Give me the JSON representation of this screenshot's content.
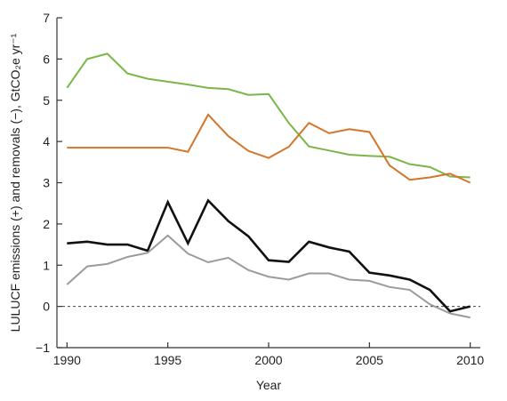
{
  "chart_data": {
    "type": "line",
    "title": "",
    "xlabel": "Year",
    "ylabel": "LULUCF emissions (+) and removals (−), GtCO₂e yr⁻¹",
    "xlim": [
      1989.5,
      2010.5
    ],
    "ylim": [
      -1,
      7
    ],
    "xticks": [
      1990,
      1995,
      2000,
      2005,
      2010
    ],
    "yticks": [
      -1,
      0,
      1,
      2,
      3,
      4,
      5,
      6,
      7
    ],
    "x": [
      1990,
      1991,
      1992,
      1993,
      1994,
      1995,
      1996,
      1997,
      1998,
      1999,
      2000,
      2001,
      2002,
      2003,
      2004,
      2005,
      2006,
      2007,
      2008,
      2009,
      2010
    ],
    "grid": false,
    "legend": "none",
    "series": [
      {
        "color": "#7ab648",
        "values": [
          5.3,
          6.0,
          6.13,
          5.65,
          5.52,
          5.45,
          5.38,
          5.3,
          5.27,
          5.13,
          5.15,
          4.45,
          3.88,
          3.78,
          3.68,
          3.65,
          3.63,
          3.45,
          3.38,
          3.15,
          3.13
        ]
      },
      {
        "color": "#d4752a",
        "values": [
          3.85,
          3.85,
          3.85,
          3.85,
          3.85,
          3.85,
          3.75,
          4.65,
          4.13,
          3.77,
          3.6,
          3.87,
          4.45,
          4.2,
          4.3,
          4.23,
          3.42,
          3.07,
          3.13,
          3.22,
          3.0
        ]
      },
      {
        "color": "#111111",
        "values": [
          1.53,
          1.57,
          1.5,
          1.5,
          1.35,
          2.53,
          1.53,
          2.57,
          2.07,
          1.7,
          1.12,
          1.08,
          1.57,
          1.43,
          1.33,
          0.82,
          0.75,
          0.65,
          0.4,
          -0.12,
          0.0
        ]
      },
      {
        "color": "#9b9b9b",
        "values": [
          0.53,
          0.97,
          1.03,
          1.2,
          1.3,
          1.72,
          1.28,
          1.07,
          1.18,
          0.88,
          0.72,
          0.65,
          0.8,
          0.8,
          0.65,
          0.62,
          0.47,
          0.4,
          0.05,
          -0.17,
          -0.27
        ]
      }
    ]
  }
}
